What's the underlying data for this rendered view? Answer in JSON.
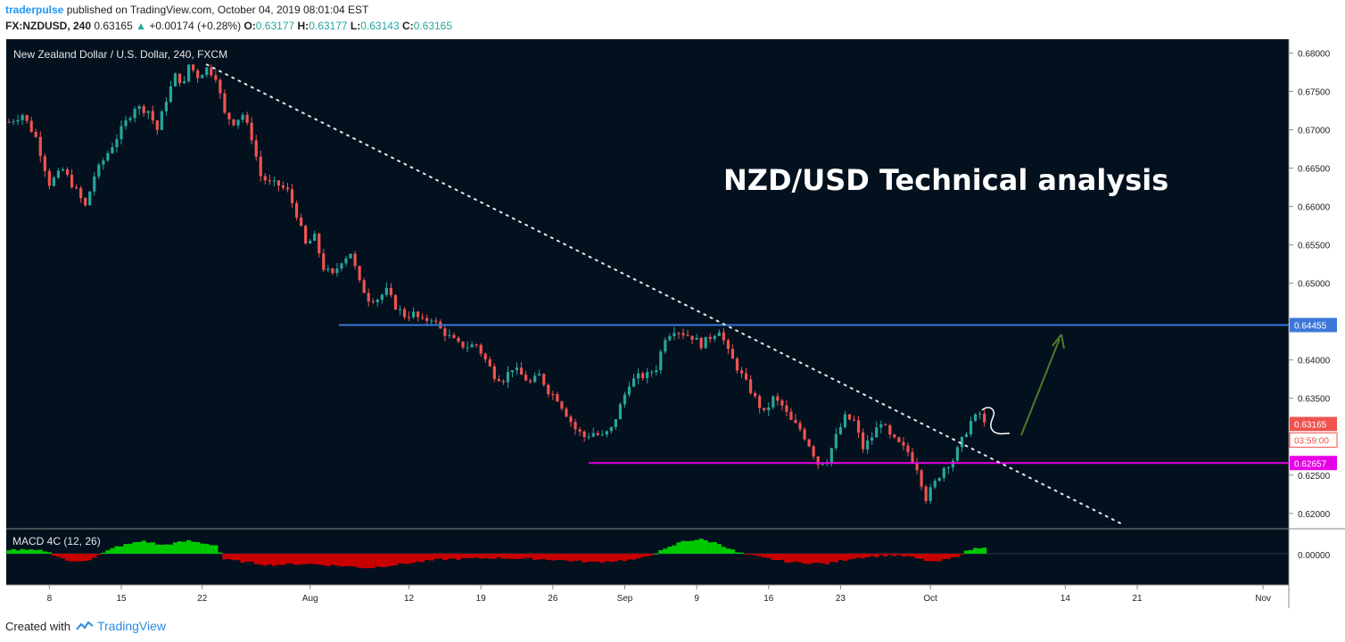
{
  "header": {
    "publisher": "traderpulse",
    "published_text": "published on TradingView.com, October 04, 2019 08:01:04 EST",
    "symbol": "FX:NZDUSD, 240",
    "last": "0.63165",
    "change": "+0.00174 (+0.28%)",
    "o_label": "O:",
    "o": "0.63177",
    "h_label": "H:",
    "h": "0.63177",
    "l_label": "L:",
    "l": "0.63143",
    "c_label": "C:",
    "c": "0.63165"
  },
  "chart_title": "New Zealand Dollar / U.S. Dollar, 240, FXCM",
  "annotation_text": "NZD/USD Technical analysis",
  "macd_label": "MACD 4C (12, 26)",
  "footer": {
    "created_with": "Created with",
    "brand": "TradingView"
  },
  "colors": {
    "background": "#03111f",
    "up": "#26a69a",
    "down": "#ef5350",
    "resistance": "#3c78d8",
    "support": "#e600e6",
    "last_price": "#ef5350",
    "arrow": "#4f7a28",
    "macd_pos": "#00c800",
    "macd_neg": "#c80000"
  },
  "chart_data": {
    "type": "candlestick",
    "title": "New Zealand Dollar / U.S. Dollar, 240, FXCM",
    "ylim": [
      0.618,
      0.6818
    ],
    "y_ticks": [
      "0.68000",
      "0.67500",
      "0.67000",
      "0.66500",
      "0.66000",
      "0.65500",
      "0.65000",
      "0.64500",
      "0.64000",
      "0.63500",
      "0.63000",
      "0.62500",
      "0.62000"
    ],
    "x_ticks": [
      "8",
      "15",
      "22",
      "Aug",
      "12",
      "19",
      "26",
      "Sep",
      "9",
      "16",
      "23",
      "Oct",
      "14",
      "21",
      "Nov"
    ],
    "price_path": [
      [
        0,
        0.671
      ],
      [
        3,
        0.672
      ],
      [
        6,
        0.669
      ],
      [
        9,
        0.663
      ],
      [
        12,
        0.6648
      ],
      [
        15,
        0.662
      ],
      [
        17,
        0.66
      ],
      [
        19,
        0.664
      ],
      [
        22,
        0.667
      ],
      [
        25,
        0.67
      ],
      [
        28,
        0.673
      ],
      [
        31,
        0.6725
      ],
      [
        33,
        0.67
      ],
      [
        35,
        0.674
      ],
      [
        37,
        0.677
      ],
      [
        39,
        0.676
      ],
      [
        40,
        0.6785
      ],
      [
        42,
        0.677
      ],
      [
        44,
        0.678
      ],
      [
        46,
        0.677
      ],
      [
        48,
        0.672
      ],
      [
        50,
        0.671
      ],
      [
        52,
        0.672
      ],
      [
        54,
        0.669
      ],
      [
        56,
        0.664
      ],
      [
        58,
        0.663
      ],
      [
        60,
        0.6628
      ],
      [
        62,
        0.662
      ],
      [
        64,
        0.659
      ],
      [
        66,
        0.655
      ],
      [
        68,
        0.656
      ],
      [
        70,
        0.652
      ],
      [
        72,
        0.651
      ],
      [
        74,
        0.653
      ],
      [
        76,
        0.654
      ],
      [
        78,
        0.65
      ],
      [
        80,
        0.648
      ],
      [
        82,
        0.648
      ],
      [
        84,
        0.649
      ],
      [
        86,
        0.647
      ],
      [
        88,
        0.6458
      ],
      [
        90,
        0.646
      ],
      [
        92,
        0.645
      ],
      [
        94,
        0.6455
      ],
      [
        96,
        0.644
      ],
      [
        98,
        0.643
      ],
      [
        100,
        0.642
      ],
      [
        102,
        0.6418
      ],
      [
        104,
        0.642
      ],
      [
        106,
        0.64
      ],
      [
        108,
        0.638
      ],
      [
        110,
        0.6375
      ],
      [
        112,
        0.639
      ],
      [
        114,
        0.638
      ],
      [
        116,
        0.637
      ],
      [
        118,
        0.638
      ],
      [
        120,
        0.636
      ],
      [
        122,
        0.635
      ],
      [
        124,
        0.633
      ],
      [
        126,
        0.631
      ],
      [
        128,
        0.63
      ],
      [
        130,
        0.6305
      ],
      [
        132,
        0.63
      ],
      [
        134,
        0.631
      ],
      [
        136,
        0.634
      ],
      [
        138,
        0.637
      ],
      [
        140,
        0.6378
      ],
      [
        142,
        0.638
      ],
      [
        144,
        0.639
      ],
      [
        146,
        0.643
      ],
      [
        148,
        0.644
      ],
      [
        150,
        0.6435
      ],
      [
        152,
        0.643
      ],
      [
        154,
        0.642
      ],
      [
        156,
        0.643
      ],
      [
        158,
        0.644
      ],
      [
        160,
        0.641
      ],
      [
        162,
        0.639
      ],
      [
        164,
        0.637
      ],
      [
        166,
        0.635
      ],
      [
        168,
        0.633
      ],
      [
        170,
        0.635
      ],
      [
        172,
        0.634
      ],
      [
        174,
        0.632
      ],
      [
        176,
        0.631
      ],
      [
        178,
        0.629
      ],
      [
        180,
        0.6265
      ],
      [
        182,
        0.627
      ],
      [
        184,
        0.63
      ],
      [
        186,
        0.6325
      ],
      [
        188,
        0.632
      ],
      [
        190,
        0.6285
      ],
      [
        192,
        0.63
      ],
      [
        194,
        0.632
      ],
      [
        196,
        0.63
      ],
      [
        198,
        0.629
      ],
      [
        200,
        0.628
      ],
      [
        202,
        0.626
      ],
      [
        204,
        0.622
      ],
      [
        206,
        0.624
      ],
      [
        208,
        0.626
      ],
      [
        210,
        0.627
      ],
      [
        212,
        0.6295
      ],
      [
        214,
        0.632
      ],
      [
        216,
        0.633
      ],
      [
        217,
        0.6316
      ]
    ],
    "series": [
      {
        "name": "",
        "type": "horizontal-line",
        "value": 0.64455,
        "label": "0.64455"
      },
      {
        "name": "",
        "type": "horizontal-line",
        "value": 0.62657,
        "label": "0.62657"
      }
    ],
    "last_price_label": "0.63165",
    "countdown_label": "03:59:00",
    "trendline": {
      "from": [
        44,
        0.6785
      ],
      "to": [
        248,
        0.6185
      ],
      "style": "dotted"
    },
    "macd": {
      "label": "MACD 4C (12, 26)",
      "zero_label": "0.00000",
      "histogram": [
        [
          0,
          0.3
        ],
        [
          8,
          0.2
        ],
        [
          14,
          -0.6
        ],
        [
          18,
          -0.4
        ],
        [
          24,
          0.5
        ],
        [
          30,
          0.9
        ],
        [
          34,
          0.6
        ],
        [
          40,
          0.9
        ],
        [
          46,
          0.6
        ],
        [
          48,
          -0.4
        ],
        [
          58,
          -0.8
        ],
        [
          66,
          -0.7
        ],
        [
          76,
          -0.9
        ],
        [
          80,
          -1.0
        ],
        [
          88,
          -0.7
        ],
        [
          96,
          -0.4
        ],
        [
          108,
          -0.3
        ],
        [
          120,
          -0.4
        ],
        [
          130,
          -0.6
        ],
        [
          140,
          -0.4
        ],
        [
          146,
          0.3
        ],
        [
          150,
          0.9
        ],
        [
          154,
          1.0
        ],
        [
          158,
          0.7
        ],
        [
          162,
          0.1
        ],
        [
          168,
          -0.3
        ],
        [
          174,
          -0.6
        ],
        [
          182,
          -0.7
        ],
        [
          188,
          -0.3
        ],
        [
          192,
          -0.2
        ],
        [
          196,
          -0.1
        ],
        [
          200,
          -0.2
        ],
        [
          206,
          -0.6
        ],
        [
          210,
          -0.3
        ],
        [
          214,
          0.3
        ],
        [
          217,
          0.5
        ]
      ]
    }
  }
}
